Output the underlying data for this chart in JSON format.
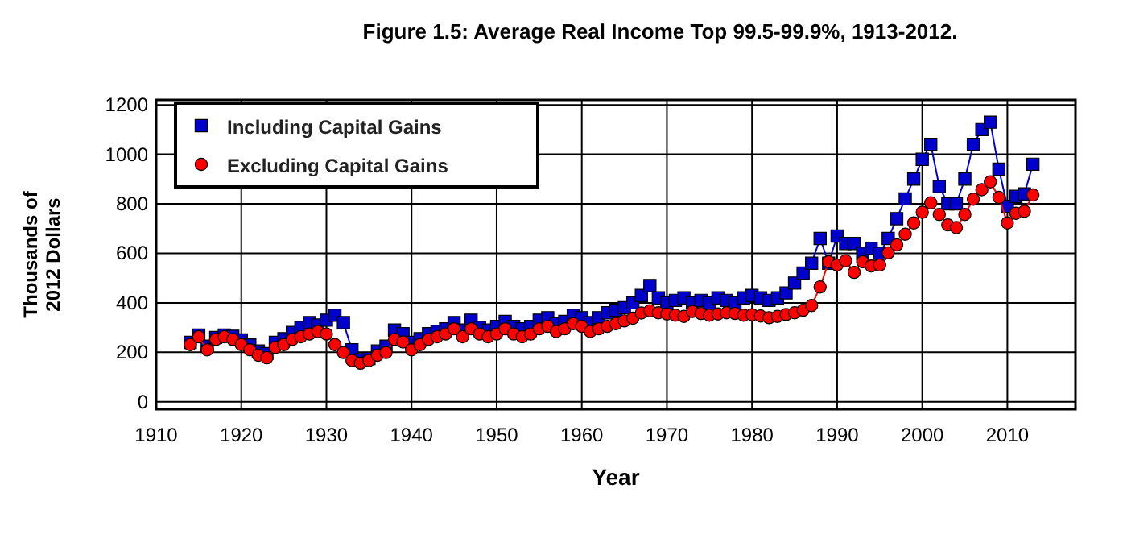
{
  "chart_data": {
    "type": "line",
    "title": "Figure 1.5: Average Real Income Top 99.5-99.9%, 1913-2012.",
    "xlabel": "Year",
    "ylabel": "Thousands of\n2012 Dollars",
    "x": [
      1914,
      1915,
      1916,
      1917,
      1918,
      1919,
      1920,
      1921,
      1922,
      1923,
      1924,
      1925,
      1926,
      1927,
      1928,
      1929,
      1930,
      1931,
      1932,
      1933,
      1934,
      1935,
      1936,
      1937,
      1938,
      1939,
      1940,
      1941,
      1942,
      1943,
      1944,
      1945,
      1946,
      1947,
      1948,
      1949,
      1950,
      1951,
      1952,
      1953,
      1954,
      1955,
      1956,
      1957,
      1958,
      1959,
      1960,
      1961,
      1962,
      1963,
      1964,
      1965,
      1966,
      1967,
      1968,
      1969,
      1970,
      1971,
      1972,
      1973,
      1974,
      1975,
      1976,
      1977,
      1978,
      1979,
      1980,
      1981,
      1982,
      1983,
      1984,
      1985,
      1986,
      1987,
      1988,
      1989,
      1990,
      1991,
      1992,
      1993,
      1994,
      1995,
      1996,
      1997,
      1998,
      1999,
      2000,
      2001,
      2002,
      2003,
      2004,
      2005,
      2006,
      2007,
      2008,
      2009,
      2010,
      2011,
      2012,
      2013
    ],
    "series": [
      {
        "name": "Including Capital Gains",
        "color": "#0000cc",
        "marker": "square",
        "values": [
          240,
          270,
          225,
          260,
          270,
          265,
          250,
          230,
          205,
          195,
          240,
          255,
          280,
          300,
          320,
          310,
          330,
          350,
          320,
          210,
          170,
          175,
          205,
          225,
          290,
          275,
          240,
          255,
          275,
          285,
          295,
          320,
          290,
          330,
          300,
          290,
          305,
          325,
          305,
          295,
          305,
          330,
          340,
          315,
          325,
          350,
          340,
          320,
          340,
          360,
          370,
          380,
          400,
          430,
          470,
          420,
          400,
          410,
          420,
          400,
          410,
          400,
          420,
          410,
          400,
          420,
          430,
          420,
          410,
          420,
          440,
          480,
          520,
          560,
          660,
          560,
          670,
          640,
          640,
          600,
          620,
          600,
          660,
          740,
          820,
          900,
          980,
          1040,
          870,
          800,
          800,
          900,
          1040,
          1100,
          1130,
          940,
          790,
          830,
          840,
          960
        ]
      },
      {
        "name": "Excluding Capital Gains",
        "color": "#ff0000",
        "marker": "circle",
        "values": [
          231,
          263,
          210,
          252,
          263,
          252,
          231,
          210,
          188,
          178,
          220,
          231,
          252,
          263,
          274,
          284,
          274,
          231,
          199,
          167,
          156,
          167,
          188,
          199,
          252,
          242,
          210,
          231,
          252,
          263,
          274,
          295,
          263,
          295,
          274,
          263,
          274,
          295,
          274,
          263,
          274,
          295,
          305,
          284,
          295,
          316,
          305,
          284,
          295,
          305,
          316,
          327,
          338,
          359,
          368,
          360,
          355,
          350,
          345,
          365,
          357,
          350,
          355,
          360,
          357,
          350,
          352,
          347,
          340,
          345,
          353,
          360,
          370,
          389,
          464,
          566,
          553,
          570,
          523,
          566,
          549,
          553,
          602,
          634,
          677,
          723,
          766,
          804,
          757,
          715,
          704,
          757,
          819,
          857,
          889,
          826,
          723,
          762,
          770,
          836
        ]
      }
    ],
    "xlim": [
      1910,
      2018
    ],
    "xticks": [
      1910,
      1920,
      1930,
      1940,
      1950,
      1960,
      1970,
      1980,
      1990,
      2000,
      2010
    ],
    "ylim": [
      -30,
      1220
    ],
    "yticks": [
      0,
      200,
      400,
      600,
      800,
      1000,
      1200
    ],
    "grid": true,
    "legend": "top left",
    "line_style": "solid"
  }
}
